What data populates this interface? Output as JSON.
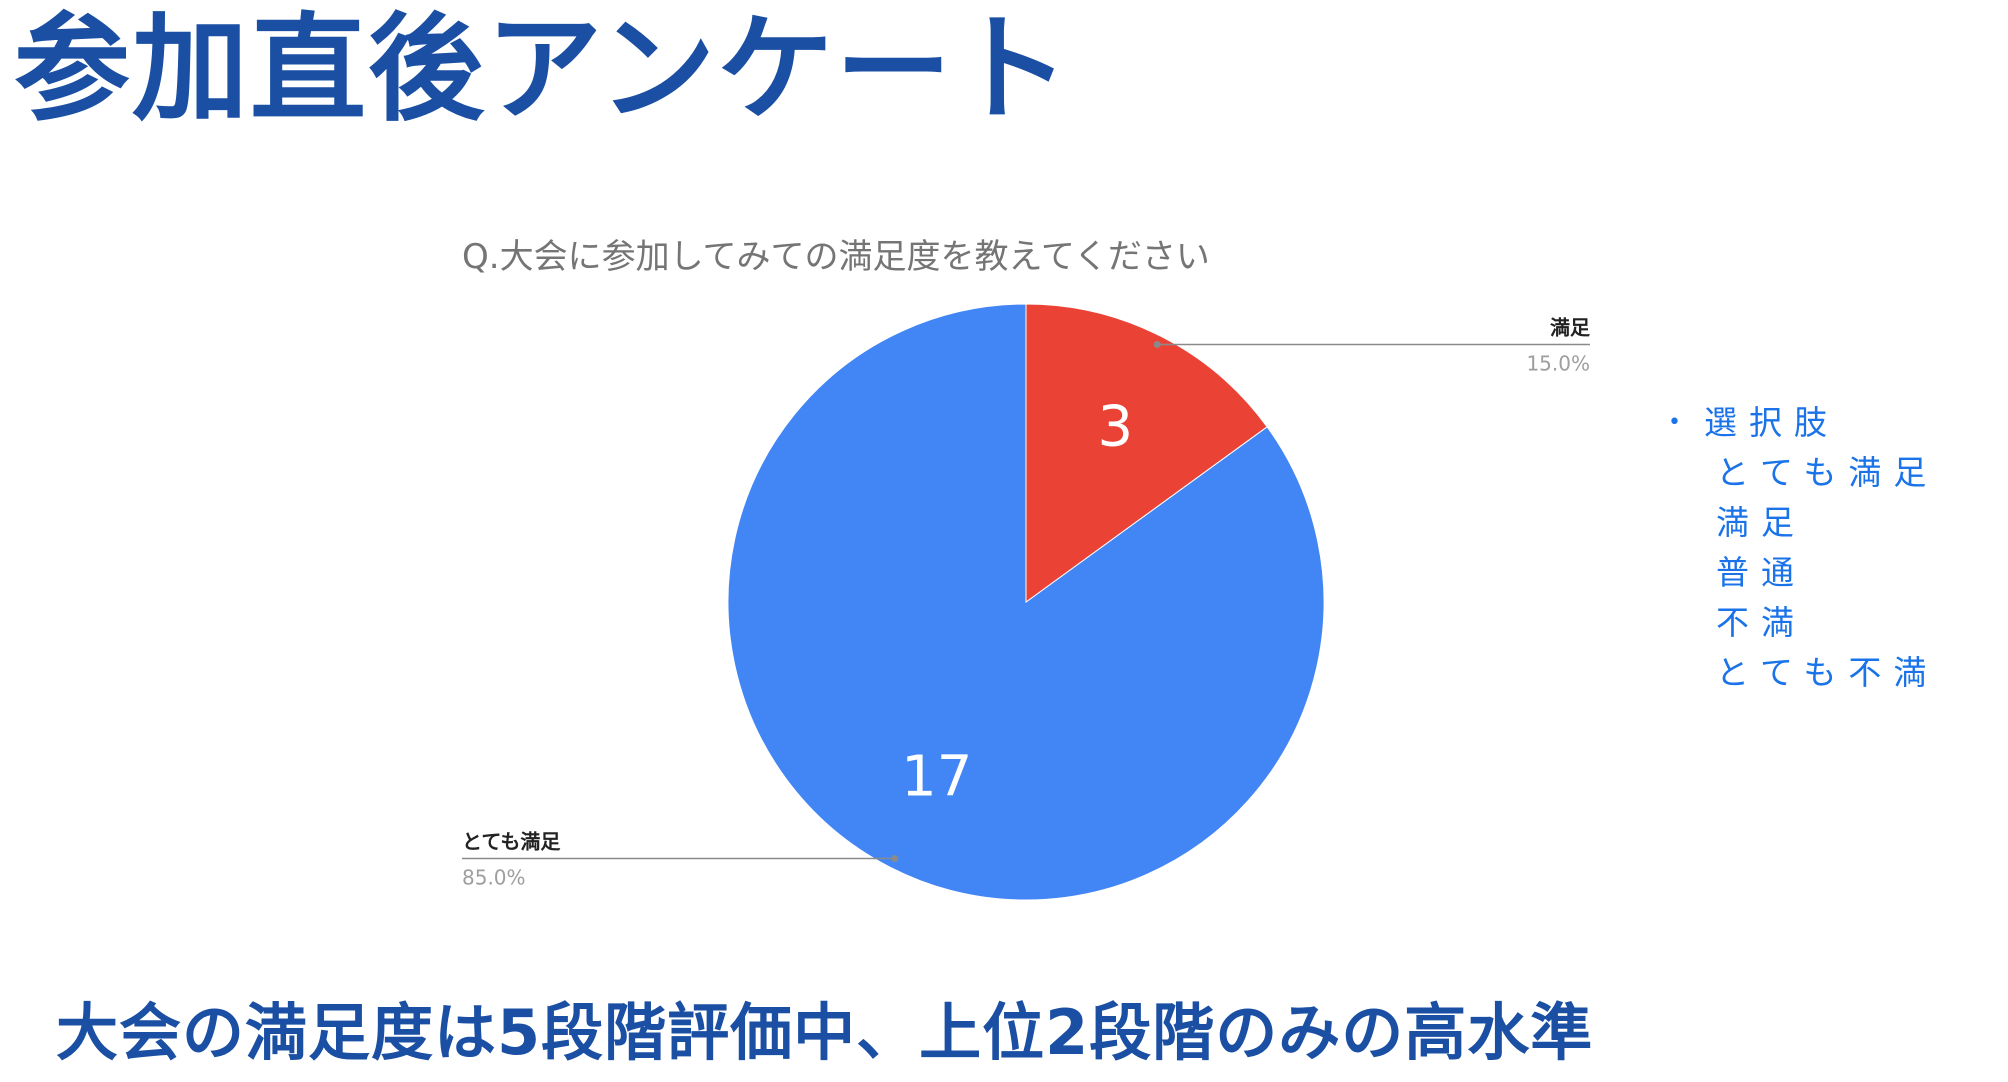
{
  "slide": {
    "title": "参加直後アンケート",
    "conclusion": "大会の満足度は5段階評価中、上位2段階のみの高水準"
  },
  "legend": {
    "heading": "選択肢",
    "items": [
      "とても満足",
      "満足",
      "普通",
      "不満",
      "とても不満"
    ]
  },
  "colors": {
    "title_blue": "#1a4fa3",
    "legend_blue": "#1a73e8",
    "slice_blue": "#4285f4",
    "slice_red": "#ea4335"
  },
  "chart_data": {
    "type": "pie",
    "title": "Q.大会に参加してみての満足度を教えてください",
    "slices": [
      {
        "label": "とても満足",
        "value": 17,
        "percent": "85.0%",
        "color": "#4285f4"
      },
      {
        "label": "満足",
        "value": 3,
        "percent": "15.0%",
        "color": "#ea4335"
      }
    ],
    "start": "12 o'clock",
    "direction": "counterclockwise",
    "legend": "right"
  }
}
